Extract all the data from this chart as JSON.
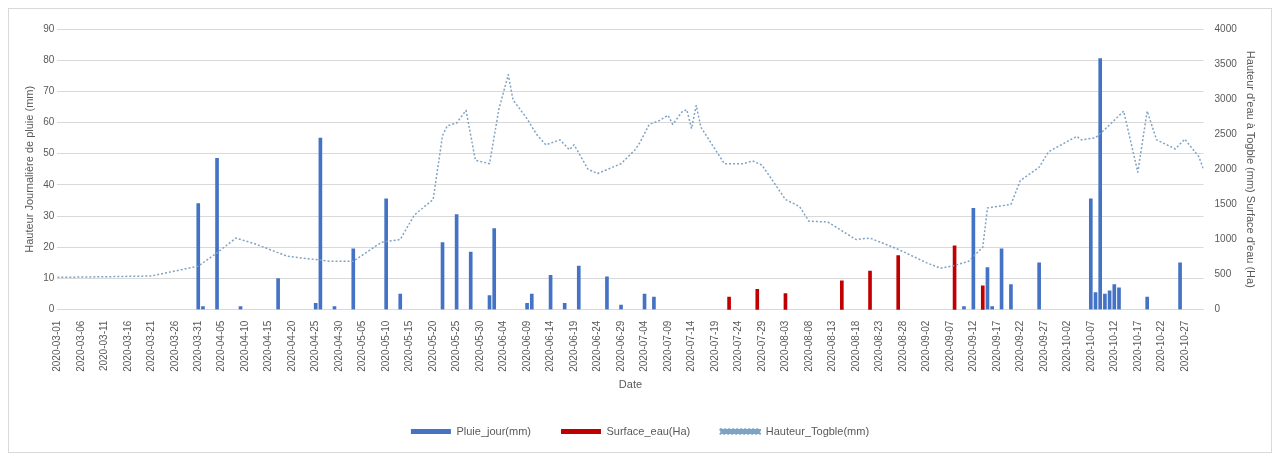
{
  "chart_data": {
    "type": "bar",
    "xlabel": "Date",
    "ylabel": "Hauteur Journalière de pluie (mm)",
    "y2label": "Hauteur d'eau à Togble (mm) Surface d'eau (Ha)",
    "xlim": [
      "2020-03-01",
      "2020-10-31"
    ],
    "xticks": [
      "2020-03-01",
      "2020-03-06",
      "2020-03-11",
      "2020-03-16",
      "2020-03-21",
      "2020-03-26",
      "2020-03-31",
      "2020-04-05",
      "2020-04-10",
      "2020-04-15",
      "2020-04-20",
      "2020-04-25",
      "2020-04-30",
      "2020-05-05",
      "2020-05-10",
      "2020-05-15",
      "2020-05-20",
      "2020-05-25",
      "2020-05-30",
      "2020-06-04",
      "2020-06-09",
      "2020-06-14",
      "2020-06-19",
      "2020-06-24",
      "2020-06-29",
      "2020-07-04",
      "2020-07-09",
      "2020-07-14",
      "2020-07-19",
      "2020-07-24",
      "2020-07-29",
      "2020-08-03",
      "2020-08-08",
      "2020-08-13",
      "2020-08-18",
      "2020-08-23",
      "2020-08-28",
      "2020-09-02",
      "2020-09-07",
      "2020-09-12",
      "2020-09-17",
      "2020-09-22",
      "2020-09-27",
      "2020-10-02",
      "2020-10-07",
      "2020-10-12",
      "2020-10-17",
      "2020-10-22",
      "2020-10-27"
    ],
    "ylim": [
      0,
      90
    ],
    "yticks": [
      0,
      10,
      20,
      30,
      40,
      50,
      60,
      70,
      80,
      90
    ],
    "y2lim": [
      0,
      4000
    ],
    "y2ticks": [
      0,
      500,
      1000,
      1500,
      2000,
      2500,
      3000,
      3500,
      4000
    ],
    "grid": "y",
    "legend": "bottom",
    "series": [
      {
        "name": "Pluie_jour(mm)",
        "color": "#4472c4",
        "x": [
          "2020-03-31",
          "2020-04-01",
          "2020-04-04",
          "2020-04-09",
          "2020-04-17",
          "2020-04-25",
          "2020-04-26",
          "2020-04-29",
          "2020-05-03",
          "2020-05-10",
          "2020-05-13",
          "2020-05-22",
          "2020-05-25",
          "2020-05-28",
          "2020-06-01",
          "2020-06-02",
          "2020-06-09",
          "2020-06-10",
          "2020-06-14",
          "2020-06-17",
          "2020-06-20",
          "2020-06-26",
          "2020-06-29",
          "2020-07-04",
          "2020-07-06",
          "2020-09-10",
          "2020-09-12",
          "2020-09-15",
          "2020-09-16",
          "2020-09-18",
          "2020-09-20",
          "2020-09-26",
          "2020-10-07",
          "2020-10-08",
          "2020-10-09",
          "2020-10-10",
          "2020-10-11",
          "2020-10-12",
          "2020-10-13",
          "2020-10-19",
          "2020-10-26"
        ],
        "values": [
          34,
          1,
          48.5,
          1,
          10,
          2,
          55,
          1,
          19.5,
          35.5,
          5,
          21.5,
          30.5,
          18.5,
          4.5,
          26,
          2,
          5,
          11,
          2,
          14,
          10.5,
          1.5,
          5,
          4,
          1,
          32.5,
          13.5,
          1,
          19.5,
          8,
          15,
          35.5,
          5.5,
          80.5,
          5,
          6,
          8,
          7,
          4,
          15
        ]
      },
      {
        "name": "Surface_eau(Ha)",
        "axis": "y2",
        "color": "#c00000",
        "x": [
          "2020-07-22",
          "2020-07-28",
          "2020-08-03",
          "2020-08-15",
          "2020-08-21",
          "2020-08-27",
          "2020-09-08",
          "2020-09-14"
        ],
        "values": [
          180,
          290,
          230,
          410,
          550,
          770,
          910,
          340
        ]
      },
      {
        "name": "Hauteur_Togble(mm)",
        "type": "line",
        "axis": "y2",
        "color": "#7fa3c4",
        "line_style": "dotted",
        "x": [
          "2020-03-01",
          "2020-03-12",
          "2020-03-21",
          "2020-03-31",
          "2020-04-04",
          "2020-04-08",
          "2020-04-12",
          "2020-04-19",
          "2020-04-28",
          "2020-05-03",
          "2020-05-09",
          "2020-05-13",
          "2020-05-16",
          "2020-05-20",
          "2020-05-22",
          "2020-05-23",
          "2020-05-25",
          "2020-05-27",
          "2020-05-29",
          "2020-06-01",
          "2020-06-03",
          "2020-06-05",
          "2020-06-06",
          "2020-06-09",
          "2020-06-11",
          "2020-06-13",
          "2020-06-16",
          "2020-06-18",
          "2020-06-19",
          "2020-06-22",
          "2020-06-24",
          "2020-06-29",
          "2020-07-02",
          "2020-07-03",
          "2020-07-05",
          "2020-07-07",
          "2020-07-09",
          "2020-07-10",
          "2020-07-12",
          "2020-07-13",
          "2020-07-14",
          "2020-07-15",
          "2020-07-16",
          "2020-07-21",
          "2020-07-25",
          "2020-07-27",
          "2020-07-29",
          "2020-08-03",
          "2020-08-06",
          "2020-08-08",
          "2020-08-12",
          "2020-08-18",
          "2020-08-21",
          "2020-08-27",
          "2020-09-02",
          "2020-09-05",
          "2020-09-08",
          "2020-09-11",
          "2020-09-14",
          "2020-09-15",
          "2020-09-20",
          "2020-09-22",
          "2020-09-26",
          "2020-09-28",
          "2020-10-04",
          "2020-10-05",
          "2020-10-08",
          "2020-10-10",
          "2020-10-14",
          "2020-10-17",
          "2020-10-19",
          "2020-10-21",
          "2020-10-25",
          "2020-10-27",
          "2020-10-30",
          "2020-10-31"
        ],
        "values": [
          460,
          470,
          480,
          620,
          810,
          1020,
          940,
          760,
          690,
          690,
          960,
          1000,
          1350,
          1570,
          2480,
          2620,
          2660,
          2840,
          2130,
          2080,
          2860,
          3350,
          2990,
          2720,
          2500,
          2350,
          2420,
          2280,
          2350,
          2000,
          1940,
          2080,
          2280,
          2380,
          2640,
          2690,
          2770,
          2640,
          2820,
          2850,
          2580,
          2910,
          2600,
          2080,
          2080,
          2120,
          2060,
          1570,
          1470,
          1260,
          1250,
          1000,
          1020,
          860,
          670,
          590,
          630,
          690,
          890,
          1450,
          1500,
          1840,
          2030,
          2250,
          2470,
          2420,
          2450,
          2570,
          2830,
          1960,
          2830,
          2420,
          2290,
          2430,
          2180,
          2000
        ]
      }
    ]
  }
}
